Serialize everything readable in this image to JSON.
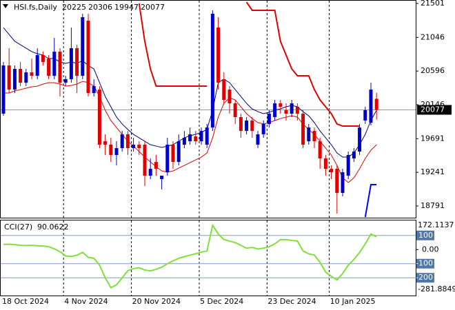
{
  "chart_data": {
    "type": "candlestick",
    "title": "HSI.fs,Daily",
    "categories": [
      "18 Oct 2024",
      null,
      null,
      null,
      null,
      null,
      null,
      null,
      null,
      null,
      null,
      "4 Nov 2024",
      null,
      null,
      null,
      null,
      null,
      null,
      null,
      null,
      null,
      null,
      null,
      "20 Nov 2024",
      null,
      null,
      null,
      null,
      null,
      null,
      null,
      null,
      null,
      null,
      null,
      "5 Dec 2024",
      null,
      null,
      null,
      null,
      null,
      null,
      null,
      null,
      null,
      null,
      null,
      "23 Dec 2024",
      null,
      null,
      null,
      null,
      null,
      null,
      null,
      null,
      null,
      null,
      "10 Jan 2025",
      null,
      null,
      null,
      null,
      null,
      null,
      null,
      null
    ],
    "ohlc": [
      [
        20026,
        20717,
        19998,
        20671
      ],
      [
        20671,
        20902,
        20302,
        20348
      ],
      [
        20348,
        20671,
        20302,
        20625
      ],
      [
        20625,
        20717,
        20395,
        20441
      ],
      [
        20441,
        20625,
        20395,
        20579
      ],
      [
        20579,
        20763,
        20487,
        20533
      ],
      [
        20533,
        20902,
        20487,
        20809
      ],
      [
        20809,
        20856,
        20671,
        20717
      ],
      [
        20763,
        20809,
        20487,
        20533
      ],
      [
        20533,
        21040,
        20487,
        20856
      ],
      [
        20856,
        20902,
        20256,
        20441
      ],
      [
        20441,
        20533,
        20395,
        20487
      ],
      [
        20487,
        21178,
        20441,
        20902
      ],
      [
        20902,
        20948,
        20302,
        20533
      ],
      [
        20533,
        21363,
        20487,
        21317
      ],
      [
        21270,
        21363,
        20256,
        20302
      ],
      [
        20302,
        20487,
        20256,
        20395
      ],
      [
        20348,
        20395,
        19565,
        19611
      ],
      [
        19657,
        19749,
        19473,
        19611
      ],
      [
        19611,
        19703,
        19380,
        19473
      ],
      [
        19473,
        19657,
        19334,
        19565
      ],
      [
        19565,
        19795,
        19519,
        19749
      ],
      [
        19749,
        19795,
        19473,
        19565
      ],
      [
        19565,
        19703,
        19519,
        19611
      ],
      [
        19611,
        19657,
        19473,
        19565
      ],
      [
        19611,
        19657,
        19058,
        19196
      ],
      [
        19196,
        19427,
        19150,
        19288
      ],
      [
        19380,
        19473,
        19196,
        19288
      ],
      [
        19150,
        19196,
        19012,
        19196
      ],
      [
        19242,
        19703,
        19196,
        19611
      ],
      [
        19611,
        19657,
        19288,
        19380
      ],
      [
        19380,
        19749,
        19334,
        19657
      ],
      [
        19611,
        19795,
        19565,
        19703
      ],
      [
        19657,
        19841,
        19611,
        19749
      ],
      [
        19721,
        19795,
        19611,
        19657
      ],
      [
        19657,
        19841,
        19611,
        19795
      ],
      [
        19611,
        19888,
        19565,
        19841
      ],
      [
        19841,
        21409,
        19795,
        21363
      ],
      [
        21178,
        21317,
        20348,
        20441
      ],
      [
        20487,
        20579,
        20164,
        20210
      ],
      [
        20348,
        20395,
        20026,
        20164
      ],
      [
        20164,
        20210,
        19888,
        19980
      ],
      [
        19980,
        20026,
        19703,
        19795
      ],
      [
        19795,
        19980,
        19749,
        19934
      ],
      [
        19934,
        19980,
        19703,
        19795
      ],
      [
        19611,
        19795,
        19565,
        19749
      ],
      [
        19749,
        19934,
        19703,
        19888
      ],
      [
        19888,
        20072,
        19841,
        20026
      ],
      [
        19980,
        20210,
        19934,
        20164
      ],
      [
        20164,
        20210,
        20026,
        20118
      ],
      [
        20072,
        20164,
        19934,
        20026
      ],
      [
        20026,
        20210,
        19980,
        20164
      ],
      [
        20118,
        20164,
        19934,
        20026
      ],
      [
        20026,
        20072,
        19565,
        19611
      ],
      [
        19657,
        19888,
        19611,
        19841
      ],
      [
        19795,
        19841,
        19565,
        19657
      ],
      [
        19657,
        19703,
        19288,
        19427
      ],
      [
        19427,
        19473,
        19196,
        19288
      ],
      [
        19288,
        19334,
        19150,
        19242
      ],
      [
        19288,
        19334,
        18689,
        18966
      ],
      [
        18966,
        19288,
        18920,
        19242
      ],
      [
        19196,
        19519,
        19150,
        19473
      ],
      [
        19427,
        19565,
        19380,
        19519
      ],
      [
        19519,
        19888,
        19473,
        19841
      ],
      [
        19934,
        20118,
        19888,
        20072
      ],
      [
        19906,
        20441,
        19869,
        20348
      ],
      [
        20225,
        20306,
        19947,
        20077
      ]
    ],
    "up_color": "#0000cc",
    "down_color": "#e00000",
    "ylim": [
      18634,
      21547
    ],
    "yticks": [
      21501,
      21046,
      20596,
      20146,
      19691,
      19241,
      18791
    ],
    "series": [
      {
        "color": "#00007f",
        "values": [
          21178,
          21086,
          20994,
          20948,
          20902,
          20856,
          20828,
          20809,
          20763,
          20763,
          20717,
          20699,
          20717,
          20699,
          20736,
          20671,
          20625,
          20441,
          20256,
          20118,
          19980,
          19888,
          19814,
          19749,
          19703,
          19657,
          19611,
          19592,
          19574,
          19592,
          19611,
          19657,
          19703,
          19731,
          19749,
          19777,
          19814,
          20072,
          20441,
          20487,
          20441,
          20348,
          20256,
          20164,
          20090,
          20053,
          20026,
          20044,
          20072,
          20090,
          20118,
          20136,
          20118,
          20053,
          19998,
          19906,
          19795,
          19703,
          19611,
          19500,
          19445,
          19445,
          19500,
          19611,
          19749,
          19934,
          20072
        ]
      },
      {
        "color": "#e00000",
        "values": [
          20302,
          20302,
          20330,
          20348,
          20367,
          20385,
          20395,
          20422,
          20441,
          20441,
          20422,
          20395,
          20404,
          20422,
          20459,
          20441,
          20395,
          20256,
          20072,
          19934,
          19841,
          19749,
          19657,
          19592,
          19519,
          19445,
          19380,
          19316,
          19260,
          19242,
          19260,
          19297,
          19334,
          19371,
          19408,
          19445,
          19500,
          19703,
          19980,
          20164,
          20238,
          20210,
          20118,
          20026,
          19961,
          19906,
          19888,
          19906,
          19934,
          19961,
          19980,
          19998,
          19980,
          19888,
          19814,
          19749,
          19657,
          19565,
          19473,
          19334,
          19168,
          19104,
          19168,
          19288,
          19427,
          19537,
          19611
        ]
      },
      {
        "color": "#e00000",
        "values": [
          null,
          null,
          null,
          null,
          null,
          null,
          null,
          null,
          null,
          null,
          null,
          null,
          null,
          null,
          null,
          null,
          null,
          null,
          null,
          null,
          null,
          null,
          null,
          null,
          21501,
          20994,
          20625,
          20395,
          20395,
          20395,
          20395,
          20395,
          20395,
          20395,
          20395,
          20395,
          20395,
          null,
          null,
          null,
          null,
          null,
          null,
          21519,
          21409,
          21409,
          21409,
          21409,
          21409,
          20994,
          20809,
          20625,
          20533,
          20533,
          20533,
          20348,
          20210,
          20118,
          20026,
          19888,
          19860,
          19860,
          19860,
          19860,
          null,
          null,
          null
        ]
      },
      {
        "color": "#0000ff",
        "values": [
          null,
          null,
          null,
          null,
          null,
          null,
          null,
          null,
          null,
          null,
          null,
          null,
          null,
          null,
          null,
          null,
          null,
          null,
          null,
          null,
          null,
          null,
          null,
          null,
          null,
          null,
          null,
          null,
          null,
          null,
          null,
          null,
          null,
          null,
          null,
          null,
          null,
          null,
          null,
          null,
          null,
          null,
          null,
          null,
          null,
          null,
          null,
          null,
          null,
          null,
          null,
          null,
          null,
          null,
          null,
          null,
          null,
          null,
          null,
          null,
          null,
          null,
          null,
          null,
          18643,
          19076,
          19076
        ]
      }
    ],
    "cci": {
      "type": "line",
      "name": "CCI(27)",
      "color": "#7ee03a",
      "values": [
        36,
        38,
        35,
        30,
        28,
        30,
        27,
        25,
        20,
        5,
        -15,
        -45,
        -49,
        -40,
        -20,
        -55,
        -62,
        -110,
        -200,
        -270,
        -250,
        -200,
        -150,
        -135,
        -129,
        -145,
        -151,
        -140,
        -125,
        -100,
        -80,
        -62,
        -50,
        -40,
        -30,
        -18,
        -10,
        172,
        110,
        71,
        60,
        49,
        30,
        10,
        15,
        4,
        10,
        20,
        40,
        71,
        70,
        65,
        60,
        -10,
        -30,
        -40,
        -90,
        -160,
        -190,
        -215,
        -170,
        -110,
        -70,
        -20,
        40,
        110,
        90.0622
      ],
      "ylim": [
        -281.8849,
        172.1137
      ],
      "yticks": [
        100,
        {
          "value": 0,
          "label": "0.00"
        },
        -100,
        -200
      ]
    }
  }
}
